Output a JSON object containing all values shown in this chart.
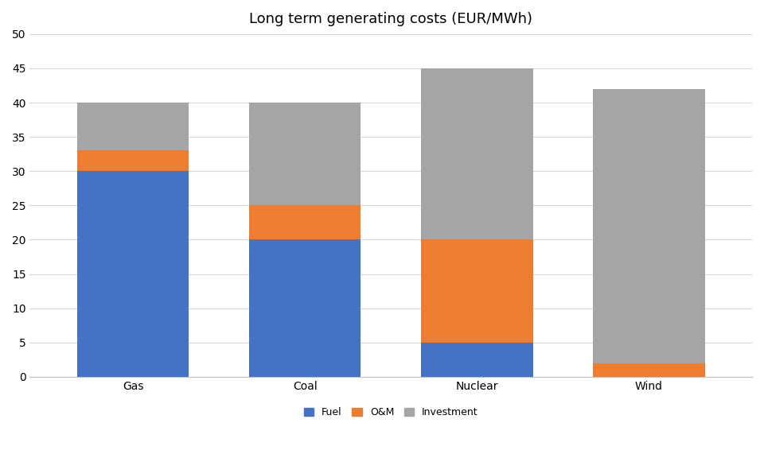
{
  "title": "Long term generating costs (EUR/MWh)",
  "categories": [
    "Gas",
    "Coal",
    "Nuclear",
    "Wind"
  ],
  "fuel": [
    30,
    20,
    5,
    0
  ],
  "om": [
    3,
    5,
    15,
    2
  ],
  "investment": [
    7,
    15,
    25,
    40
  ],
  "fuel_color": "#4472c4",
  "om_color": "#ed7d31",
  "investment_color": "#a5a5a5",
  "background_color": "#ffffff",
  "ylim": [
    0,
    50
  ],
  "yticks": [
    0,
    5,
    10,
    15,
    20,
    25,
    30,
    35,
    40,
    45,
    50
  ],
  "legend_labels": [
    "Fuel",
    "O&M",
    "Investment"
  ],
  "title_fontsize": 13,
  "tick_fontsize": 10,
  "legend_fontsize": 9,
  "bar_width": 0.65,
  "grid_color": "#d9d9d9",
  "xlim_left": -0.6,
  "xlim_right": 3.6
}
